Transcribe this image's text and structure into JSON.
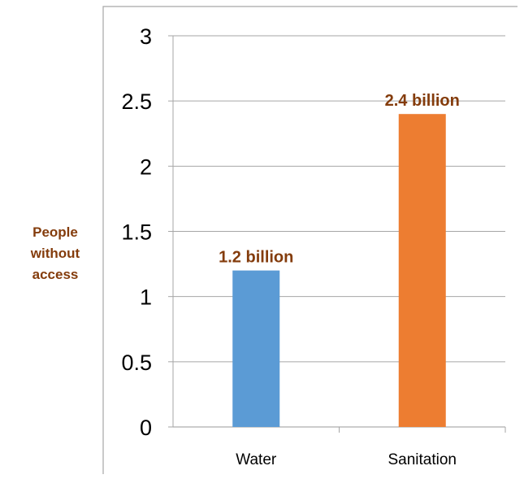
{
  "chart_data": {
    "type": "bar",
    "categories": [
      "Water",
      "Sanitation"
    ],
    "values": [
      1.2,
      2.4
    ],
    "data_labels": [
      "1.2 billion",
      "2.4 billion"
    ],
    "colors": [
      "#5b9bd5",
      "#ed7d31"
    ],
    "label_color": "#843c0c",
    "ylabel": "People\nwithout\naccess",
    "ylim": [
      0,
      3
    ],
    "yticks": [
      "0",
      "0.5",
      "1",
      "1.5",
      "2",
      "2.5",
      "3"
    ],
    "grid": true
  }
}
